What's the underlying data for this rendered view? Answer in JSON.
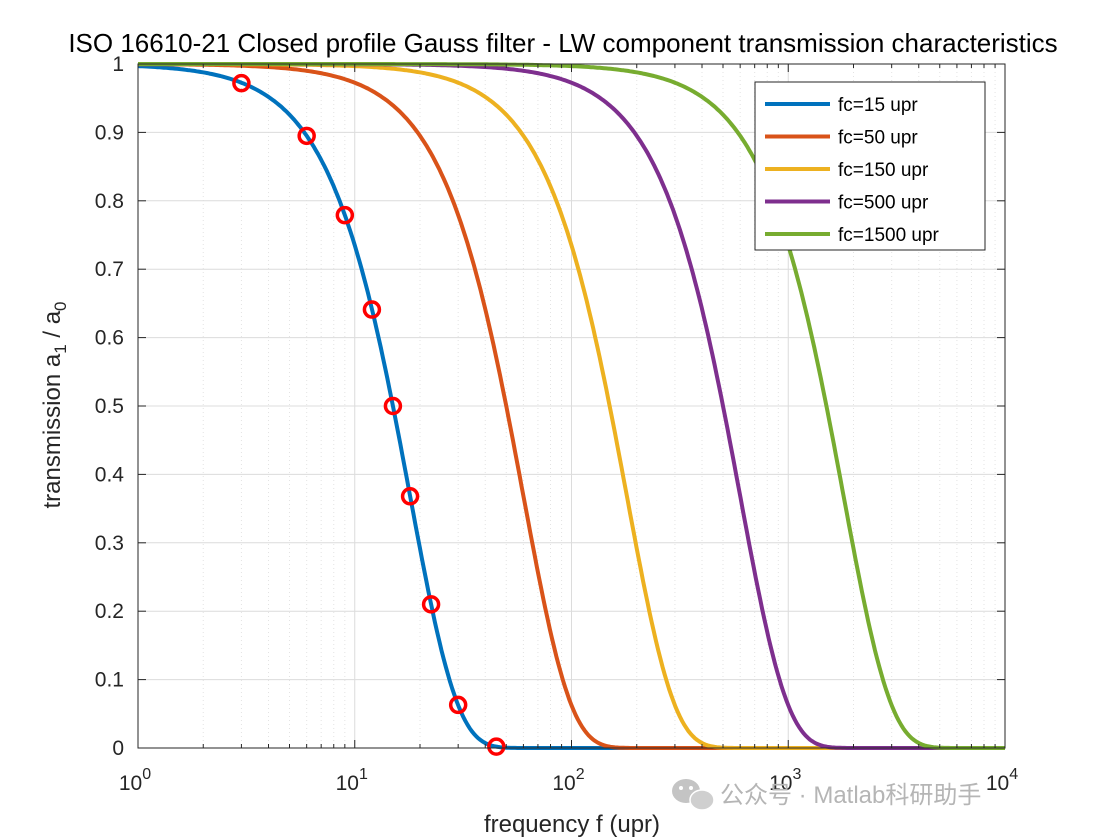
{
  "chart_data": {
    "type": "line",
    "title": "ISO 16610-21 Closed profile Gauss filter - LW component transmission characteristics",
    "xlabel": "frequency f (upr)",
    "ylabel": "transmission a",
    "ylabel_sub1": "1",
    "ylabel_mid": "  / a",
    "ylabel_sub2": "0",
    "xscale": "log",
    "xlim": [
      1,
      10000
    ],
    "ylim": [
      0,
      1
    ],
    "x_tick_values": [
      1,
      10,
      100,
      1000,
      10000
    ],
    "x_tick_labels": [
      {
        "base": "10",
        "exp": "0"
      },
      {
        "base": "10",
        "exp": "1"
      },
      {
        "base": "10",
        "exp": "2"
      },
      {
        "base": "10",
        "exp": "3"
      },
      {
        "base": "10",
        "exp": "4"
      }
    ],
    "y_ticks": [
      0,
      0.1,
      0.2,
      0.3,
      0.4,
      0.5,
      0.6,
      0.7,
      0.8,
      0.9,
      1
    ],
    "y_tick_labels": [
      "0",
      "0.1",
      "0.2",
      "0.3",
      "0.4",
      "0.5",
      "0.6",
      "0.7",
      "0.8",
      "0.9",
      "1"
    ],
    "grid": true,
    "minor_grid": true,
    "legend_position": "top-right",
    "series": [
      {
        "name": "fc=15 upr",
        "fc": 15,
        "color": "#0072BD"
      },
      {
        "name": "fc=50 upr",
        "fc": 50,
        "color": "#D95319"
      },
      {
        "name": "fc=150 upr",
        "fc": 150,
        "color": "#EDB120"
      },
      {
        "name": "fc=500 upr",
        "fc": 500,
        "color": "#7E2F8E"
      },
      {
        "name": "fc=1500 upr",
        "fc": 1500,
        "color": "#77AC30"
      }
    ],
    "markers": {
      "series": "fc=15 upr",
      "color": "#FF0000",
      "x": [
        3,
        6,
        9,
        12,
        15,
        18,
        22.5,
        30,
        45
      ],
      "y": [
        0.972,
        0.895,
        0.779,
        0.641,
        0.5,
        0.368,
        0.21,
        0.063,
        0.002
      ]
    }
  },
  "watermark": {
    "text": "公众号 · Matlab科研助手",
    "icon": "wechat-icon"
  }
}
